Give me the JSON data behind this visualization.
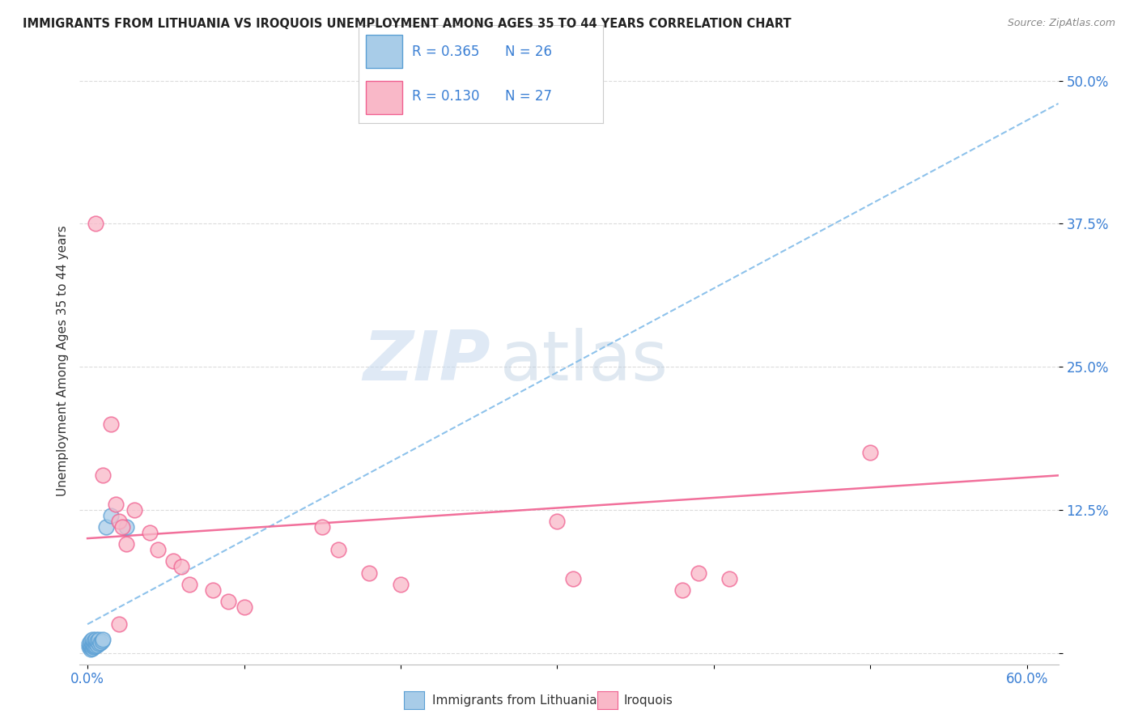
{
  "title": "IMMIGRANTS FROM LITHUANIA VS IROQUOIS UNEMPLOYMENT AMONG AGES 35 TO 44 YEARS CORRELATION CHART",
  "source": "Source: ZipAtlas.com",
  "xlabel_ticks": [
    "0.0%",
    "",
    "",
    "",
    "",
    "",
    "60.0%"
  ],
  "xlabel_vals": [
    0.0,
    0.1,
    0.2,
    0.3,
    0.4,
    0.5,
    0.6
  ],
  "ylabel_ticks": [
    "",
    "12.5%",
    "25.0%",
    "37.5%",
    "50.0%"
  ],
  "ylabel_vals": [
    0.0,
    0.125,
    0.25,
    0.375,
    0.5
  ],
  "xlim": [
    -0.005,
    0.62
  ],
  "ylim": [
    -0.01,
    0.52
  ],
  "watermark_zip": "ZIP",
  "watermark_atlas": "atlas",
  "legend_R_blue": "0.365",
  "legend_N_blue": "26",
  "legend_R_pink": "0.130",
  "legend_N_pink": "27",
  "legend_label_blue": "Immigrants from Lithuania",
  "legend_label_pink": "Iroquois",
  "blue_color": "#a8cce8",
  "pink_color": "#f9b8c8",
  "blue_edge_color": "#5a9fd4",
  "pink_edge_color": "#f06090",
  "blue_trend_color": "#7ab8e8",
  "pink_trend_color": "#f06090",
  "blue_scatter": [
    [
      0.001,
      0.005
    ],
    [
      0.001,
      0.008
    ],
    [
      0.002,
      0.003
    ],
    [
      0.002,
      0.005
    ],
    [
      0.002,
      0.007
    ],
    [
      0.002,
      0.01
    ],
    [
      0.003,
      0.004
    ],
    [
      0.003,
      0.006
    ],
    [
      0.003,
      0.008
    ],
    [
      0.003,
      0.012
    ],
    [
      0.004,
      0.005
    ],
    [
      0.004,
      0.007
    ],
    [
      0.004,
      0.01
    ],
    [
      0.005,
      0.006
    ],
    [
      0.005,
      0.009
    ],
    [
      0.005,
      0.012
    ],
    [
      0.006,
      0.007
    ],
    [
      0.006,
      0.01
    ],
    [
      0.007,
      0.008
    ],
    [
      0.007,
      0.012
    ],
    [
      0.008,
      0.009
    ],
    [
      0.009,
      0.01
    ],
    [
      0.01,
      0.012
    ],
    [
      0.012,
      0.11
    ],
    [
      0.015,
      0.12
    ],
    [
      0.025,
      0.11
    ]
  ],
  "pink_scatter": [
    [
      0.005,
      0.375
    ],
    [
      0.01,
      0.155
    ],
    [
      0.015,
      0.2
    ],
    [
      0.018,
      0.13
    ],
    [
      0.02,
      0.115
    ],
    [
      0.022,
      0.11
    ],
    [
      0.025,
      0.095
    ],
    [
      0.03,
      0.125
    ],
    [
      0.04,
      0.105
    ],
    [
      0.045,
      0.09
    ],
    [
      0.055,
      0.08
    ],
    [
      0.06,
      0.075
    ],
    [
      0.065,
      0.06
    ],
    [
      0.08,
      0.055
    ],
    [
      0.09,
      0.045
    ],
    [
      0.1,
      0.04
    ],
    [
      0.15,
      0.11
    ],
    [
      0.16,
      0.09
    ],
    [
      0.18,
      0.07
    ],
    [
      0.2,
      0.06
    ],
    [
      0.3,
      0.115
    ],
    [
      0.31,
      0.065
    ],
    [
      0.38,
      0.055
    ],
    [
      0.39,
      0.07
    ],
    [
      0.41,
      0.065
    ],
    [
      0.5,
      0.175
    ],
    [
      0.02,
      0.025
    ]
  ],
  "blue_trendline_x": [
    0.0,
    0.62
  ],
  "blue_trendline_y": [
    0.025,
    0.48
  ],
  "pink_trendline_x": [
    0.0,
    0.62
  ],
  "pink_trendline_y": [
    0.1,
    0.155
  ],
  "background_color": "#ffffff",
  "grid_color": "#cccccc"
}
